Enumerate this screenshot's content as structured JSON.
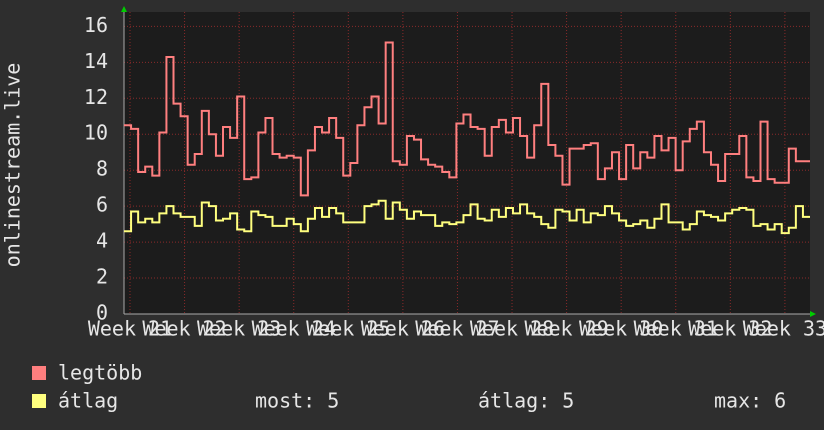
{
  "chart_data": {
    "type": "line",
    "ylabel": "onlinestream.live",
    "xlim": [
      20.89,
      33.46
    ],
    "xticks": [
      {
        "value": 21,
        "label": "Week 21"
      },
      {
        "value": 22,
        "label": "Week 22"
      },
      {
        "value": 23,
        "label": "Week 23"
      },
      {
        "value": 24,
        "label": "Week 24"
      },
      {
        "value": 25,
        "label": "Week 25"
      },
      {
        "value": 26,
        "label": "Week 26"
      },
      {
        "value": 27,
        "label": "Week 27"
      },
      {
        "value": 28,
        "label": "Week 28"
      },
      {
        "value": 29,
        "label": "Week 29"
      },
      {
        "value": 30,
        "label": "Week 30"
      },
      {
        "value": 31,
        "label": "Week 31"
      },
      {
        "value": 32,
        "label": "Week 32"
      },
      {
        "value": 33,
        "label": "Week 33"
      }
    ],
    "ylim": [
      0,
      16.8
    ],
    "yticks": [
      0,
      2,
      4,
      6,
      8,
      10,
      12,
      14,
      16
    ],
    "grid": true,
    "series": [
      {
        "name": "legtöbb",
        "color": "#ff7f7f",
        "values": [
          10.5,
          10.3,
          7.9,
          8.2,
          7.7,
          10.1,
          14.3,
          11.7,
          11.0,
          8.3,
          8.9,
          11.3,
          10.0,
          8.8,
          10.4,
          9.8,
          12.1,
          7.5,
          7.6,
          10.1,
          10.9,
          8.9,
          8.7,
          8.8,
          8.7,
          6.6,
          9.1,
          10.4,
          10.1,
          10.9,
          9.8,
          7.7,
          8.4,
          10.5,
          11.5,
          12.1,
          10.6,
          15.1,
          8.5,
          8.3,
          9.9,
          9.7,
          8.6,
          8.3,
          8.2,
          7.9,
          7.6,
          10.6,
          11.1,
          10.4,
          10.3,
          8.8,
          10.4,
          10.8,
          10.1,
          10.9,
          9.9,
          8.7,
          10.5,
          12.8,
          9.4,
          8.8,
          7.2,
          9.2,
          9.2,
          9.4,
          9.5,
          7.5,
          8.1,
          9.0,
          7.5,
          9.4,
          8.1,
          9.0,
          8.7,
          9.9,
          9.1,
          9.8,
          8.0,
          9.6,
          10.3,
          10.7,
          9.0,
          8.3,
          7.4,
          8.9,
          8.9,
          9.9,
          7.6,
          7.4,
          10.7,
          7.5,
          7.3,
          7.3,
          9.2,
          8.5,
          8.5
        ]
      },
      {
        "name": "átlag",
        "color": "#ffff7f",
        "values": [
          4.6,
          5.7,
          5.1,
          5.3,
          5.1,
          5.6,
          6.0,
          5.6,
          5.4,
          5.4,
          4.9,
          6.2,
          6.0,
          5.2,
          5.3,
          5.6,
          4.7,
          4.6,
          5.7,
          5.5,
          5.4,
          4.9,
          4.9,
          5.3,
          5.0,
          4.6,
          5.3,
          5.9,
          5.4,
          5.9,
          5.6,
          5.1,
          5.1,
          5.1,
          6.0,
          6.1,
          6.3,
          5.3,
          6.2,
          5.8,
          5.3,
          5.7,
          5.5,
          5.5,
          4.9,
          5.1,
          5.0,
          5.1,
          5.5,
          6.1,
          5.3,
          5.2,
          5.8,
          5.4,
          5.9,
          5.6,
          6.1,
          5.6,
          5.4,
          5.0,
          4.8,
          5.8,
          5.7,
          5.2,
          5.8,
          5.1,
          5.6,
          5.5,
          6.0,
          5.6,
          5.2,
          4.9,
          5.0,
          5.2,
          4.8,
          5.3,
          6.1,
          5.1,
          5.1,
          4.7,
          5.0,
          5.7,
          5.5,
          5.4,
          5.2,
          5.6,
          5.8,
          5.9,
          5.8,
          4.9,
          5.0,
          4.7,
          5.0,
          4.5,
          4.8,
          6.0,
          5.4
        ]
      }
    ],
    "stats": [
      {
        "label": "most:",
        "value": 5
      },
      {
        "label": "átlag:",
        "value": 5
      },
      {
        "label": "max:",
        "value": 6
      }
    ]
  }
}
